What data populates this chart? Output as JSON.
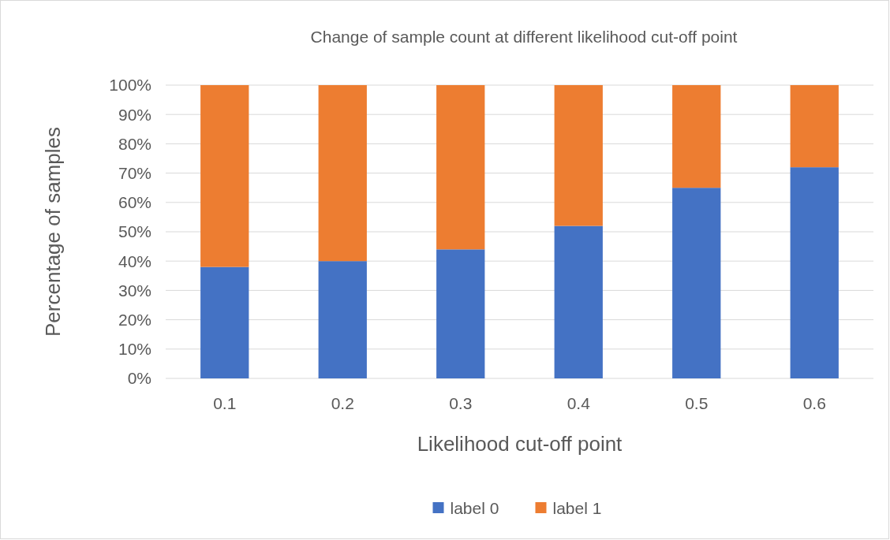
{
  "chart_data": {
    "type": "bar",
    "title": "Change of sample count at different likelihood cut-off point",
    "xlabel": "Likelihood cut-off point",
    "ylabel": "Percentage of samples",
    "categories": [
      "0.1",
      "0.2",
      "0.3",
      "0.4",
      "0.5",
      "0.6"
    ],
    "stacked": true,
    "series": [
      {
        "name": "label 0",
        "color": "#4472c4",
        "values": [
          38,
          40,
          44,
          52,
          65,
          72
        ]
      },
      {
        "name": "label 1",
        "color": "#ed7d31",
        "values": [
          62,
          60,
          56,
          48,
          35,
          28
        ]
      }
    ],
    "ylim": [
      0,
      100
    ],
    "yticks": [
      {
        "value": 0,
        "label": "0%"
      },
      {
        "value": 10,
        "label": "10%"
      },
      {
        "value": 20,
        "label": "20%"
      },
      {
        "value": 30,
        "label": "30%"
      },
      {
        "value": 40,
        "label": "40%"
      },
      {
        "value": 50,
        "label": "50%"
      },
      {
        "value": 60,
        "label": "60%"
      },
      {
        "value": 70,
        "label": "70%"
      },
      {
        "value": 80,
        "label": "80%"
      },
      {
        "value": 90,
        "label": "90%"
      },
      {
        "value": 100,
        "label": "100%"
      }
    ],
    "grid": "y",
    "legend": "bottom"
  }
}
